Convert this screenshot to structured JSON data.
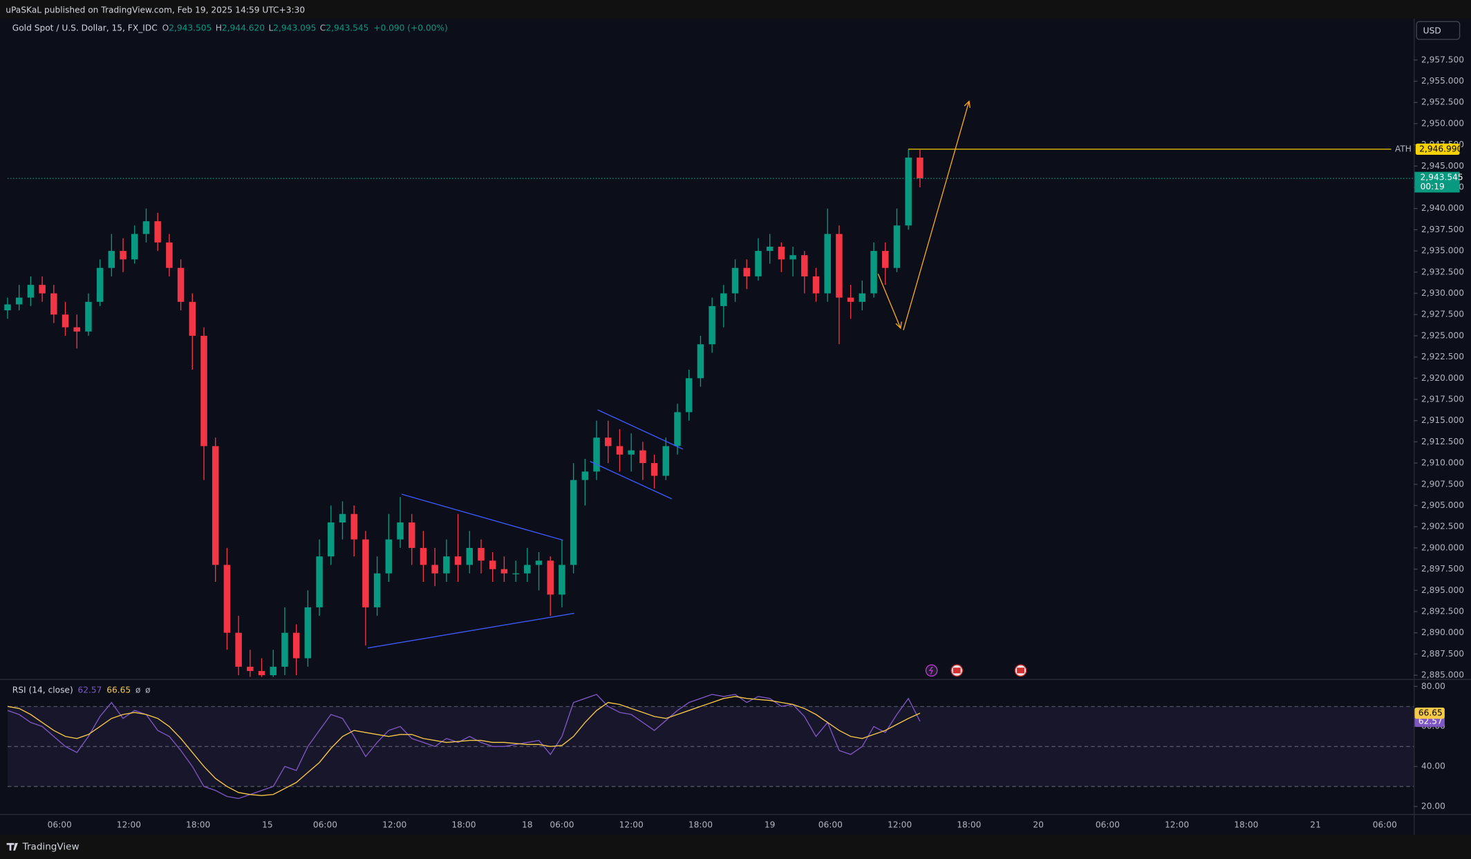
{
  "header": {
    "publisher": "uPaSKaL published on TradingView.com, Feb 19, 2025 14:59 UTC+3:30",
    "brand": "TradingView",
    "currency": "USD"
  },
  "chart_data": [
    {
      "type": "candlestick",
      "title": "Gold Spot / U.S. Dollar, 15, FX_IDC",
      "ohlc": [
        {
          "key": "O",
          "value": "2,943.505"
        },
        {
          "key": "H",
          "value": "2,944.620"
        },
        {
          "key": "L",
          "value": "2,943.095"
        },
        {
          "key": "C",
          "value": "2,943.545"
        }
      ],
      "change": "+0.090 (+0.00%)",
      "colors": {
        "up": "#089981",
        "down": "#f23645"
      },
      "xlim": [
        0,
        487
      ],
      "xticks": [
        {
          "value": 18,
          "label": "06:00"
        },
        {
          "value": 42,
          "label": "12:00"
        },
        {
          "value": 66,
          "label": "18:00"
        },
        {
          "value": 90,
          "label": "15"
        },
        {
          "value": 110,
          "label": "06:00"
        },
        {
          "value": 134,
          "label": "12:00"
        },
        {
          "value": 158,
          "label": "18:00"
        },
        {
          "value": 180,
          "label": "18"
        },
        {
          "value": 192,
          "label": "06:00"
        },
        {
          "value": 216,
          "label": "12:00"
        },
        {
          "value": 240,
          "label": "18:00"
        },
        {
          "value": 264,
          "label": "19"
        },
        {
          "value": 285,
          "label": "06:00"
        },
        {
          "value": 309,
          "label": "12:00"
        },
        {
          "value": 333,
          "label": "18:00"
        },
        {
          "value": 357,
          "label": "20"
        },
        {
          "value": 381,
          "label": "06:00"
        },
        {
          "value": 405,
          "label": "12:00"
        },
        {
          "value": 429,
          "label": "18:00"
        },
        {
          "value": 453,
          "label": "21"
        },
        {
          "value": 477,
          "label": "06:00"
        }
      ],
      "ylim": [
        2884.56,
        2962.36
      ],
      "yticks": [
        {
          "value": 2885,
          "label": "2,885.000"
        },
        {
          "value": 2887.5,
          "label": "2,887.500"
        },
        {
          "value": 2890,
          "label": "2,890.000"
        },
        {
          "value": 2892.5,
          "label": "2,892.500"
        },
        {
          "value": 2895,
          "label": "2,895.000"
        },
        {
          "value": 2897.5,
          "label": "2,897.500"
        },
        {
          "value": 2900,
          "label": "2,900.000"
        },
        {
          "value": 2902.5,
          "label": "2,902.500"
        },
        {
          "value": 2905,
          "label": "2,905.000"
        },
        {
          "value": 2907.5,
          "label": "2,907.500"
        },
        {
          "value": 2910,
          "label": "2,910.000"
        },
        {
          "value": 2912.5,
          "label": "2,912.500"
        },
        {
          "value": 2915,
          "label": "2,915.000"
        },
        {
          "value": 2917.5,
          "label": "2,917.500"
        },
        {
          "value": 2920,
          "label": "2,920.000"
        },
        {
          "value": 2922.5,
          "label": "2,922.500"
        },
        {
          "value": 2925,
          "label": "2,925.000"
        },
        {
          "value": 2927.5,
          "label": "2,927.500"
        },
        {
          "value": 2930,
          "label": "2,930.000"
        },
        {
          "value": 2932.5,
          "label": "2,932.500"
        },
        {
          "value": 2935,
          "label": "2,935.000"
        },
        {
          "value": 2937.5,
          "label": "2,937.500"
        },
        {
          "value": 2940,
          "label": "2,940.000"
        },
        {
          "value": 2942.5,
          "label": "2,942.500"
        },
        {
          "value": 2945,
          "label": "2,945.000"
        },
        {
          "value": 2947.5,
          "label": "2,947.500"
        },
        {
          "value": 2950,
          "label": "2,950.000"
        },
        {
          "value": 2952.5,
          "label": "2,952.500"
        },
        {
          "value": 2955,
          "label": "2,955.000"
        },
        {
          "value": 2957.5,
          "label": "2,957.500"
        }
      ],
      "candles": [
        [
          0,
          2928,
          2929.5,
          2927,
          2928.7
        ],
        [
          4,
          2928.7,
          2931,
          2928,
          2929.5
        ],
        [
          8,
          2929.5,
          2932,
          2928.5,
          2931
        ],
        [
          12,
          2931,
          2932,
          2929,
          2930
        ],
        [
          16,
          2930,
          2931,
          2926.5,
          2927.5
        ],
        [
          20,
          2927.5,
          2929,
          2925,
          2926
        ],
        [
          24,
          2926,
          2927.5,
          2923.5,
          2925.5
        ],
        [
          28,
          2925.5,
          2930,
          2925,
          2929
        ],
        [
          32,
          2929,
          2934,
          2928.5,
          2933
        ],
        [
          36,
          2933,
          2937,
          2932,
          2935
        ],
        [
          40,
          2935,
          2936.5,
          2932.5,
          2934
        ],
        [
          44,
          2934,
          2938,
          2933.5,
          2937
        ],
        [
          48,
          2937,
          2940,
          2936,
          2938.5
        ],
        [
          52,
          2938.5,
          2939.5,
          2935,
          2936
        ],
        [
          56,
          2936,
          2937,
          2932,
          2933
        ],
        [
          60,
          2933,
          2934,
          2928,
          2929
        ],
        [
          64,
          2929,
          2930,
          2921,
          2925
        ],
        [
          68,
          2925,
          2926,
          2908,
          2912
        ],
        [
          72,
          2912,
          2913,
          2896,
          2898
        ],
        [
          76,
          2898,
          2900,
          2888,
          2890
        ],
        [
          80,
          2890,
          2892,
          2885,
          2886
        ],
        [
          84,
          2886,
          2888,
          2884.8,
          2885.5
        ],
        [
          88,
          2885.5,
          2887,
          2884.8,
          2885
        ],
        [
          92,
          2885,
          2888,
          2884.8,
          2886
        ],
        [
          96,
          2886,
          2893,
          2885,
          2890
        ],
        [
          100,
          2890,
          2891,
          2885,
          2887
        ],
        [
          104,
          2887,
          2895,
          2886,
          2893
        ],
        [
          108,
          2893,
          2901,
          2892,
          2899
        ],
        [
          112,
          2899,
          2905,
          2898,
          2903
        ],
        [
          116,
          2903,
          2905.5,
          2901,
          2904
        ],
        [
          120,
          2904,
          2905,
          2899,
          2901
        ],
        [
          124,
          2901,
          2902,
          2888.5,
          2893
        ],
        [
          128,
          2893,
          2899,
          2892,
          2897
        ],
        [
          132,
          2897,
          2904,
          2896,
          2901
        ],
        [
          136,
          2901,
          2906,
          2900,
          2903
        ],
        [
          140,
          2903,
          2904,
          2898,
          2900
        ],
        [
          144,
          2900,
          2902,
          2896,
          2898
        ],
        [
          148,
          2898,
          2900,
          2895.5,
          2897
        ],
        [
          152,
          2897,
          2901,
          2896,
          2899
        ],
        [
          156,
          2899,
          2904,
          2896,
          2898
        ],
        [
          160,
          2898,
          2902,
          2897,
          2900
        ],
        [
          164,
          2900,
          2901,
          2897,
          2898.5
        ],
        [
          168,
          2898.5,
          2899.5,
          2896,
          2897.5
        ],
        [
          172,
          2897.5,
          2899,
          2896,
          2897
        ],
        [
          176,
          2897,
          2898.5,
          2896,
          2897
        ],
        [
          180,
          2897,
          2900,
          2896,
          2898
        ],
        [
          184,
          2898,
          2899.5,
          2895,
          2898.5
        ],
        [
          188,
          2898.5,
          2899,
          2892,
          2894.5
        ],
        [
          192,
          2894.5,
          2901,
          2893,
          2898
        ],
        [
          196,
          2898,
          2910,
          2897,
          2908
        ],
        [
          200,
          2908,
          2910.5,
          2905,
          2909
        ],
        [
          204,
          2909,
          2915,
          2908,
          2913
        ],
        [
          208,
          2913,
          2915,
          2910,
          2912
        ],
        [
          212,
          2912,
          2914,
          2909,
          2911
        ],
        [
          216,
          2911,
          2913.5,
          2909,
          2911.5
        ],
        [
          220,
          2911.5,
          2912.5,
          2908,
          2910
        ],
        [
          224,
          2910,
          2911,
          2907,
          2908.5
        ],
        [
          228,
          2908.5,
          2913,
          2908,
          2912
        ],
        [
          232,
          2912,
          2917,
          2911,
          2916
        ],
        [
          236,
          2916,
          2921,
          2915,
          2920
        ],
        [
          240,
          2920,
          2925,
          2919,
          2924
        ],
        [
          244,
          2924,
          2929.5,
          2923,
          2928.5
        ],
        [
          248,
          2928.5,
          2931,
          2926,
          2930
        ],
        [
          252,
          2930,
          2934,
          2929,
          2933
        ],
        [
          256,
          2933,
          2934,
          2930.5,
          2932
        ],
        [
          260,
          2932,
          2936.5,
          2931.5,
          2935
        ],
        [
          264,
          2935,
          2937,
          2933.5,
          2935.5
        ],
        [
          268,
          2935.5,
          2936,
          2932.5,
          2934
        ],
        [
          272,
          2934,
          2935.5,
          2932,
          2934.5
        ],
        [
          276,
          2934.5,
          2935,
          2930,
          2932
        ],
        [
          280,
          2932,
          2933,
          2929,
          2930
        ],
        [
          284,
          2930,
          2940,
          2929,
          2937
        ],
        [
          288,
          2937,
          2938,
          2924,
          2929.5
        ],
        [
          292,
          2929.5,
          2931,
          2927,
          2929
        ],
        [
          296,
          2929,
          2931.5,
          2928,
          2930
        ],
        [
          300,
          2930,
          2936,
          2929.5,
          2935
        ],
        [
          304,
          2935,
          2936,
          2931,
          2933
        ],
        [
          308,
          2933,
          2940,
          2932.5,
          2938
        ],
        [
          312,
          2938,
          2947,
          2937.5,
          2946
        ],
        [
          316,
          2946,
          2946.9,
          2942.5,
          2943.545
        ]
      ],
      "last": {
        "value": 2943.545,
        "label": "2,943.545",
        "countdown": "00:19",
        "color": "#089981"
      },
      "ath": {
        "text": "ATH",
        "value": 2946.99,
        "label": "2,946.990",
        "color": "#f7d100"
      }
    },
    {
      "type": "line",
      "title": "RSI (14, close)",
      "extras": [
        "ø",
        "ø"
      ],
      "ylim": [
        16.25,
        81.875
      ],
      "yticks": [
        {
          "value": 20,
          "label": "20.00"
        },
        {
          "value": 40,
          "label": "40.00"
        },
        {
          "value": 60,
          "label": "60.00"
        },
        {
          "value": 80,
          "label": "80.00"
        }
      ],
      "levels": [
        70,
        50,
        30
      ],
      "x": [
        0,
        4,
        8,
        12,
        16,
        20,
        24,
        28,
        32,
        36,
        40,
        44,
        48,
        52,
        56,
        60,
        64,
        68,
        72,
        76,
        80,
        84,
        88,
        92,
        96,
        100,
        104,
        108,
        112,
        116,
        120,
        124,
        128,
        132,
        136,
        140,
        144,
        148,
        152,
        156,
        160,
        164,
        168,
        172,
        176,
        180,
        184,
        188,
        192,
        196,
        200,
        204,
        208,
        212,
        216,
        220,
        224,
        228,
        232,
        236,
        240,
        244,
        248,
        252,
        256,
        260,
        264,
        268,
        272,
        276,
        280,
        284,
        288,
        292,
        296,
        300,
        304,
        308,
        312,
        316
      ],
      "series": [
        {
          "color": "#7e57c2",
          "values": [
            68,
            66,
            62,
            60,
            55,
            50,
            47,
            55,
            65,
            72,
            64,
            68,
            66,
            58,
            55,
            48,
            40,
            30,
            28,
            25,
            24,
            26,
            28,
            30,
            40,
            38,
            50,
            58,
            66,
            64,
            55,
            45,
            52,
            58,
            60,
            54,
            52,
            50,
            54,
            52,
            55,
            52,
            50,
            50,
            51,
            52,
            53,
            46,
            55,
            72,
            74,
            76,
            70,
            67,
            66,
            62,
            58,
            63,
            68,
            72,
            74,
            76,
            75,
            76,
            72,
            75,
            74,
            70,
            71,
            65,
            55,
            62,
            48,
            46,
            50,
            60,
            57,
            66,
            74,
            62.57
          ]
        },
        {
          "color": "#f7c948",
          "values": [
            70,
            69,
            66,
            62,
            58,
            55,
            54,
            56,
            60,
            64,
            66,
            67,
            66,
            64,
            60,
            54,
            47,
            40,
            34,
            30,
            27,
            26,
            25.5,
            26,
            29,
            32,
            37,
            42,
            49,
            55,
            58,
            57,
            56,
            55,
            56,
            56,
            54,
            53,
            52,
            52.5,
            53,
            53,
            52,
            52,
            51.5,
            51,
            51,
            50,
            50.5,
            55,
            62,
            68,
            72,
            71,
            69,
            67,
            65,
            64,
            66,
            68,
            70,
            72,
            74,
            75,
            74,
            73.5,
            73,
            72,
            71,
            69,
            66,
            62,
            58,
            55,
            54,
            56,
            58,
            61,
            64,
            66.65
          ]
        }
      ]
    }
  ]
}
